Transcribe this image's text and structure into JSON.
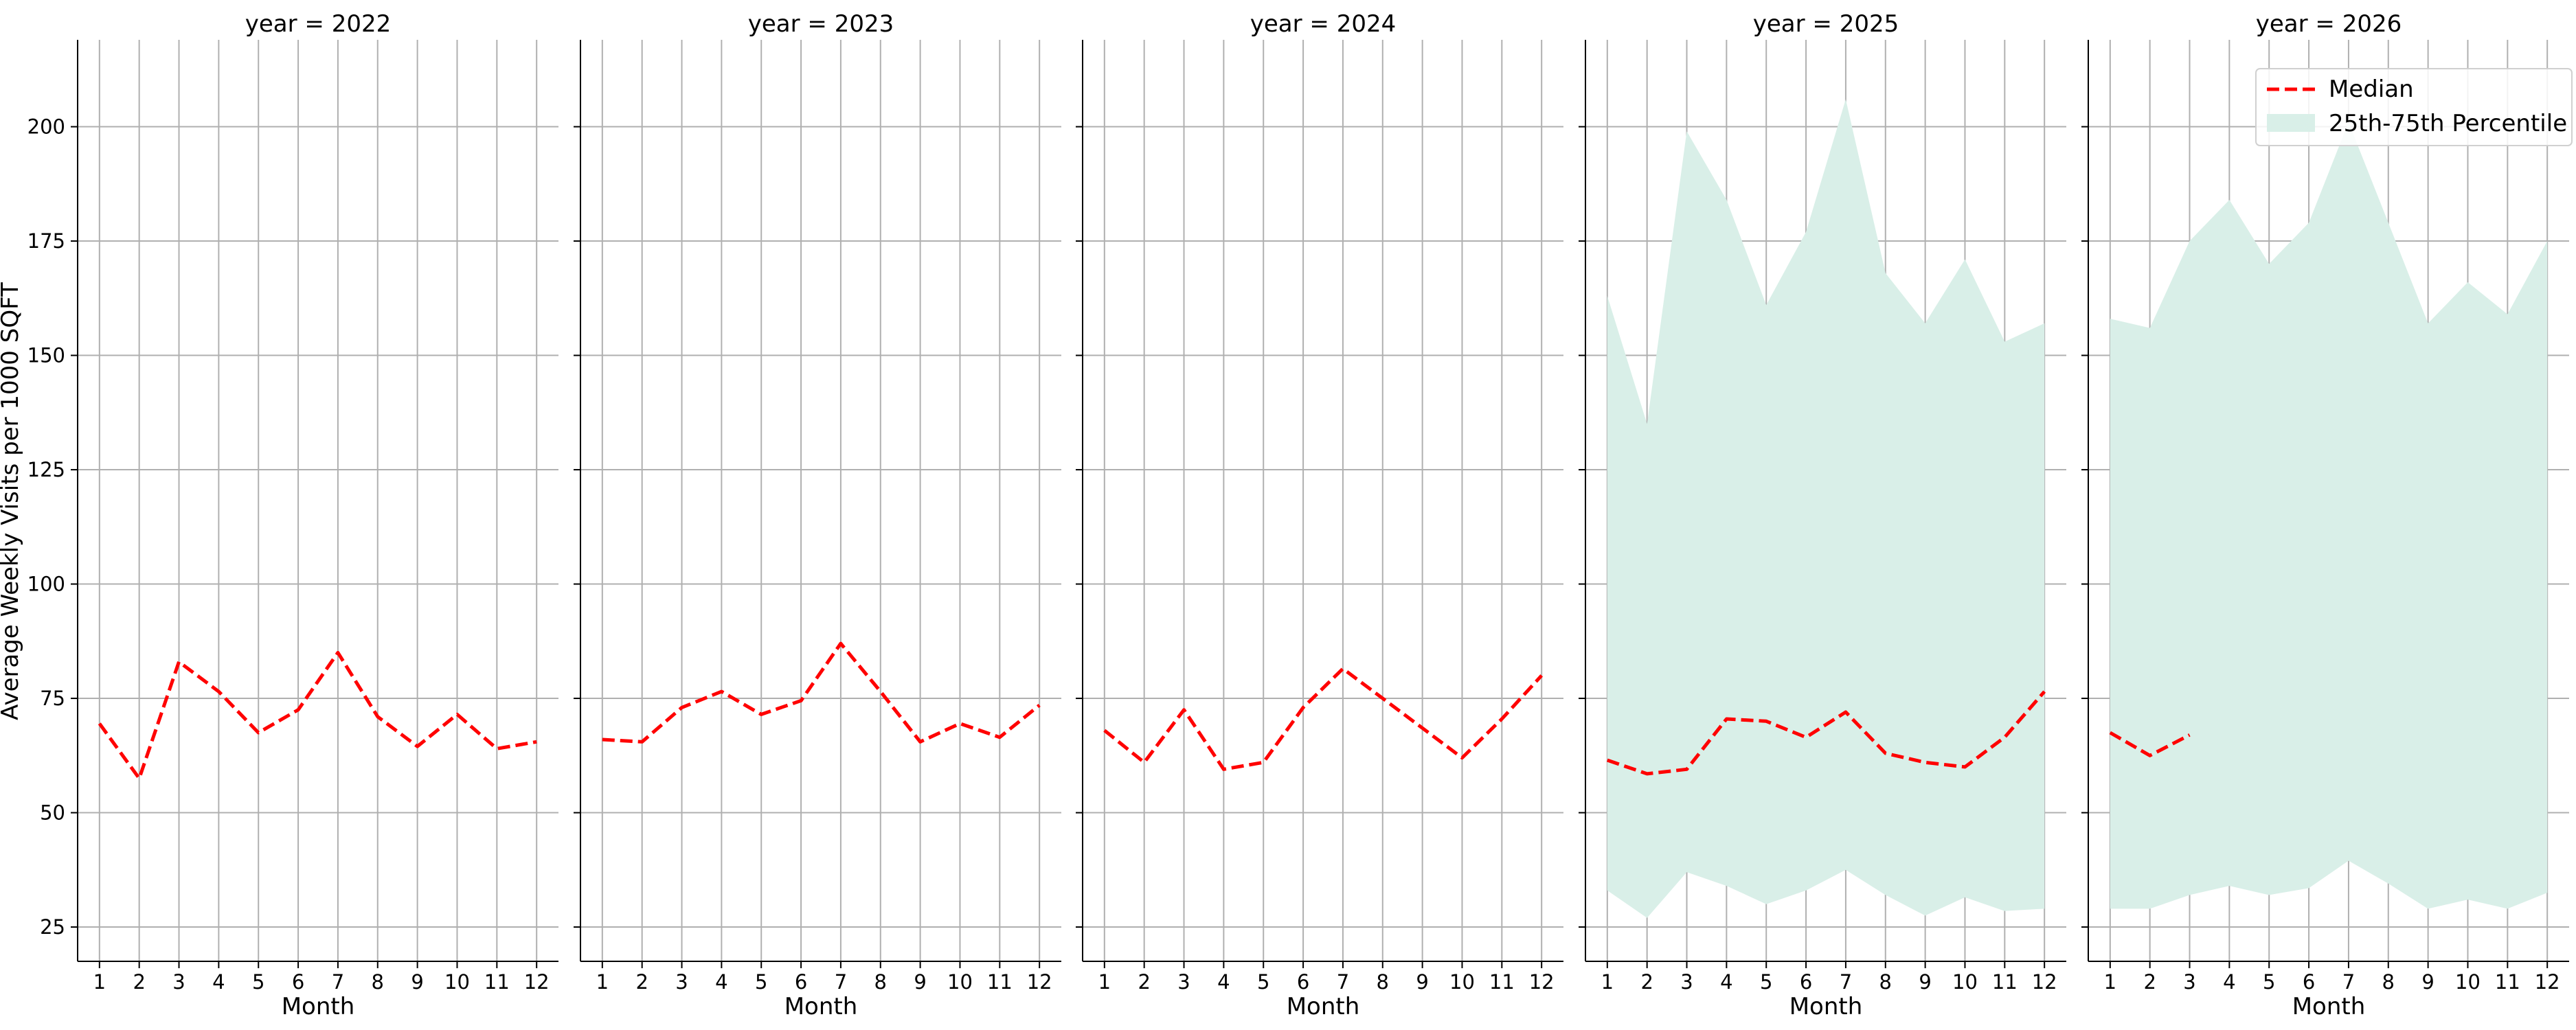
{
  "colors": {
    "median": "#ff0000",
    "band": "#d9efe8",
    "grid": "#b0b0b0",
    "spine": "#000000"
  },
  "chart_data": {
    "type": "line",
    "ylabel": "Average Weekly Visits per 1000 SQFT",
    "xlabel": "Month",
    "ylim": [
      17.5,
      219
    ],
    "yticks": [
      25,
      50,
      75,
      100,
      125,
      150,
      175,
      200
    ],
    "xticks": [
      1,
      2,
      3,
      4,
      5,
      6,
      7,
      8,
      9,
      10,
      11,
      12
    ],
    "xlim": [
      0.45,
      12.55
    ],
    "grid": true,
    "legend": {
      "placement": "top-right",
      "median_label": "Median",
      "band_label": "25th-75th Percentile"
    },
    "panels": [
      {
        "title": "year = 2022",
        "median": [
          69.5,
          57.5,
          83.0,
          76.5,
          67.5,
          72.5,
          85.0,
          71.0,
          64.5,
          71.5,
          64.0,
          65.5
        ]
      },
      {
        "title": "year = 2023",
        "median": [
          66.0,
          65.5,
          73.0,
          76.5,
          71.5,
          74.5,
          87.0,
          76.5,
          65.5,
          69.5,
          66.5,
          73.5
        ]
      },
      {
        "title": "year = 2024",
        "median": [
          68.0,
          61.0,
          72.5,
          59.5,
          61.0,
          73.0,
          81.5,
          75.0,
          68.5,
          62.0,
          70.5,
          80.0
        ]
      },
      {
        "title": "year = 2025",
        "median": [
          61.5,
          58.5,
          59.5,
          70.5,
          70.0,
          66.5,
          72.0,
          63.0,
          61.0,
          60.0,
          66.5,
          76.5
        ],
        "p75": [
          163.0,
          135.0,
          199.0,
          184.0,
          161.0,
          177.0,
          206.0,
          168.0,
          157.0,
          171.0,
          153.0,
          157.0
        ],
        "p25": [
          33.0,
          27.0,
          37.0,
          34.0,
          30.0,
          33.0,
          37.5,
          32.0,
          27.5,
          31.5,
          28.5,
          29.0
        ]
      },
      {
        "title": "year = 2026",
        "median": [
          67.5,
          62.5,
          67.0
        ],
        "p75": [
          158.0,
          156.0,
          175.0,
          184.0,
          170.0,
          179.0,
          201.0,
          179.0,
          157.0,
          166.0,
          159.0,
          175.0
        ],
        "p25": [
          29.0,
          29.0,
          32.0,
          34.0,
          32.0,
          33.5,
          39.5,
          34.5,
          29.0,
          31.0,
          29.0,
          32.5
        ]
      }
    ]
  }
}
